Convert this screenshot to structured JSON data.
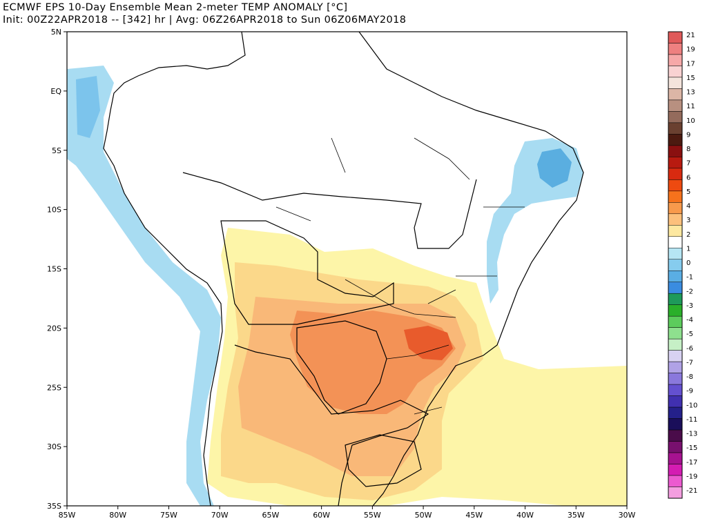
{
  "header": {
    "title": "ECMWF EPS 10-Day Ensemble Mean 2-meter TEMP ANOMALY [°C]",
    "subtitle": "Init: 00Z22APR2018 -- [342] hr | Avg: 06Z26APR2018 to Sun 06Z06MAY2018"
  },
  "map": {
    "lon_range": [
      -85,
      -30
    ],
    "lat_range": [
      -35,
      5
    ],
    "lat_labels": [
      "5N",
      "EQ",
      "5S",
      "10S",
      "15S",
      "20S",
      "25S",
      "30S",
      "35S"
    ],
    "lat_values": [
      5,
      0,
      -5,
      -10,
      -15,
      -20,
      -25,
      -30,
      -35
    ],
    "lon_labels": [
      "85W",
      "80W",
      "75W",
      "70W",
      "65W",
      "60W",
      "55W",
      "50W",
      "45W",
      "40W",
      "35W",
      "30W"
    ],
    "lon_values": [
      -85,
      -80,
      -75,
      -70,
      -65,
      -60,
      -55,
      -50,
      -45,
      -40,
      -35,
      -30
    ],
    "anomaly_regions": [
      {
        "name": "southern-warm-outer",
        "level": 1,
        "color": "#fdf5a8"
      },
      {
        "name": "central-warm",
        "level": 2,
        "color": "#fbd88a"
      },
      {
        "name": "plata-warm",
        "level": 3,
        "color": "#f9b878"
      },
      {
        "name": "parana-warm-core",
        "level": 4,
        "color": "#f39256"
      },
      {
        "name": "sao-paulo-warm-peak",
        "level": 5,
        "color": "#e85b2c"
      },
      {
        "name": "northeast-cool",
        "level": -1,
        "color": "#a8dcf2"
      },
      {
        "name": "northeast-cool-core",
        "level": -3,
        "color": "#5aaee0"
      },
      {
        "name": "pacific-cool",
        "level": -1,
        "color": "#a8dcf2"
      },
      {
        "name": "pacific-cool-core",
        "level": -2,
        "color": "#7cc4ec"
      }
    ]
  },
  "colorbar": {
    "labels": [
      "21",
      "19",
      "17",
      "15",
      "13",
      "11",
      "10",
      "9",
      "8",
      "7",
      "6",
      "5",
      "4",
      "3",
      "2",
      "1",
      "0",
      "-1",
      "-2",
      "-3",
      "-4",
      "-5",
      "-6",
      "-7",
      "-8",
      "-9",
      "-10",
      "-11",
      "-13",
      "-15",
      "-17",
      "-19",
      "-21"
    ],
    "colors": [
      "#e05a5a",
      "#ee8080",
      "#f6a8a8",
      "#f9d2d2",
      "#f4e4dc",
      "#dcb6a6",
      "#b89080",
      "#946b5c",
      "#6a4030",
      "#4c1a10",
      "#8a1010",
      "#b81a10",
      "#d82a10",
      "#ee4a10",
      "#f6721c",
      "#f89a4c",
      "#fcc07c",
      "#fde8a0",
      "#ffffff",
      "#b6e6f4",
      "#86ccee",
      "#5aaee4",
      "#3a8ce0",
      "#1e9a5a",
      "#2ab02a",
      "#5ccc5c",
      "#8ee08e",
      "#c6f0c6",
      "#d8d2f2",
      "#b0a2e6",
      "#8a78dc",
      "#6450d0",
      "#4030b0",
      "#24208a",
      "#1a0e5a",
      "#4a0c4a",
      "#78106e",
      "#a61290",
      "#d41cb2",
      "#ec5ad0",
      "#f49ee0"
    ]
  }
}
